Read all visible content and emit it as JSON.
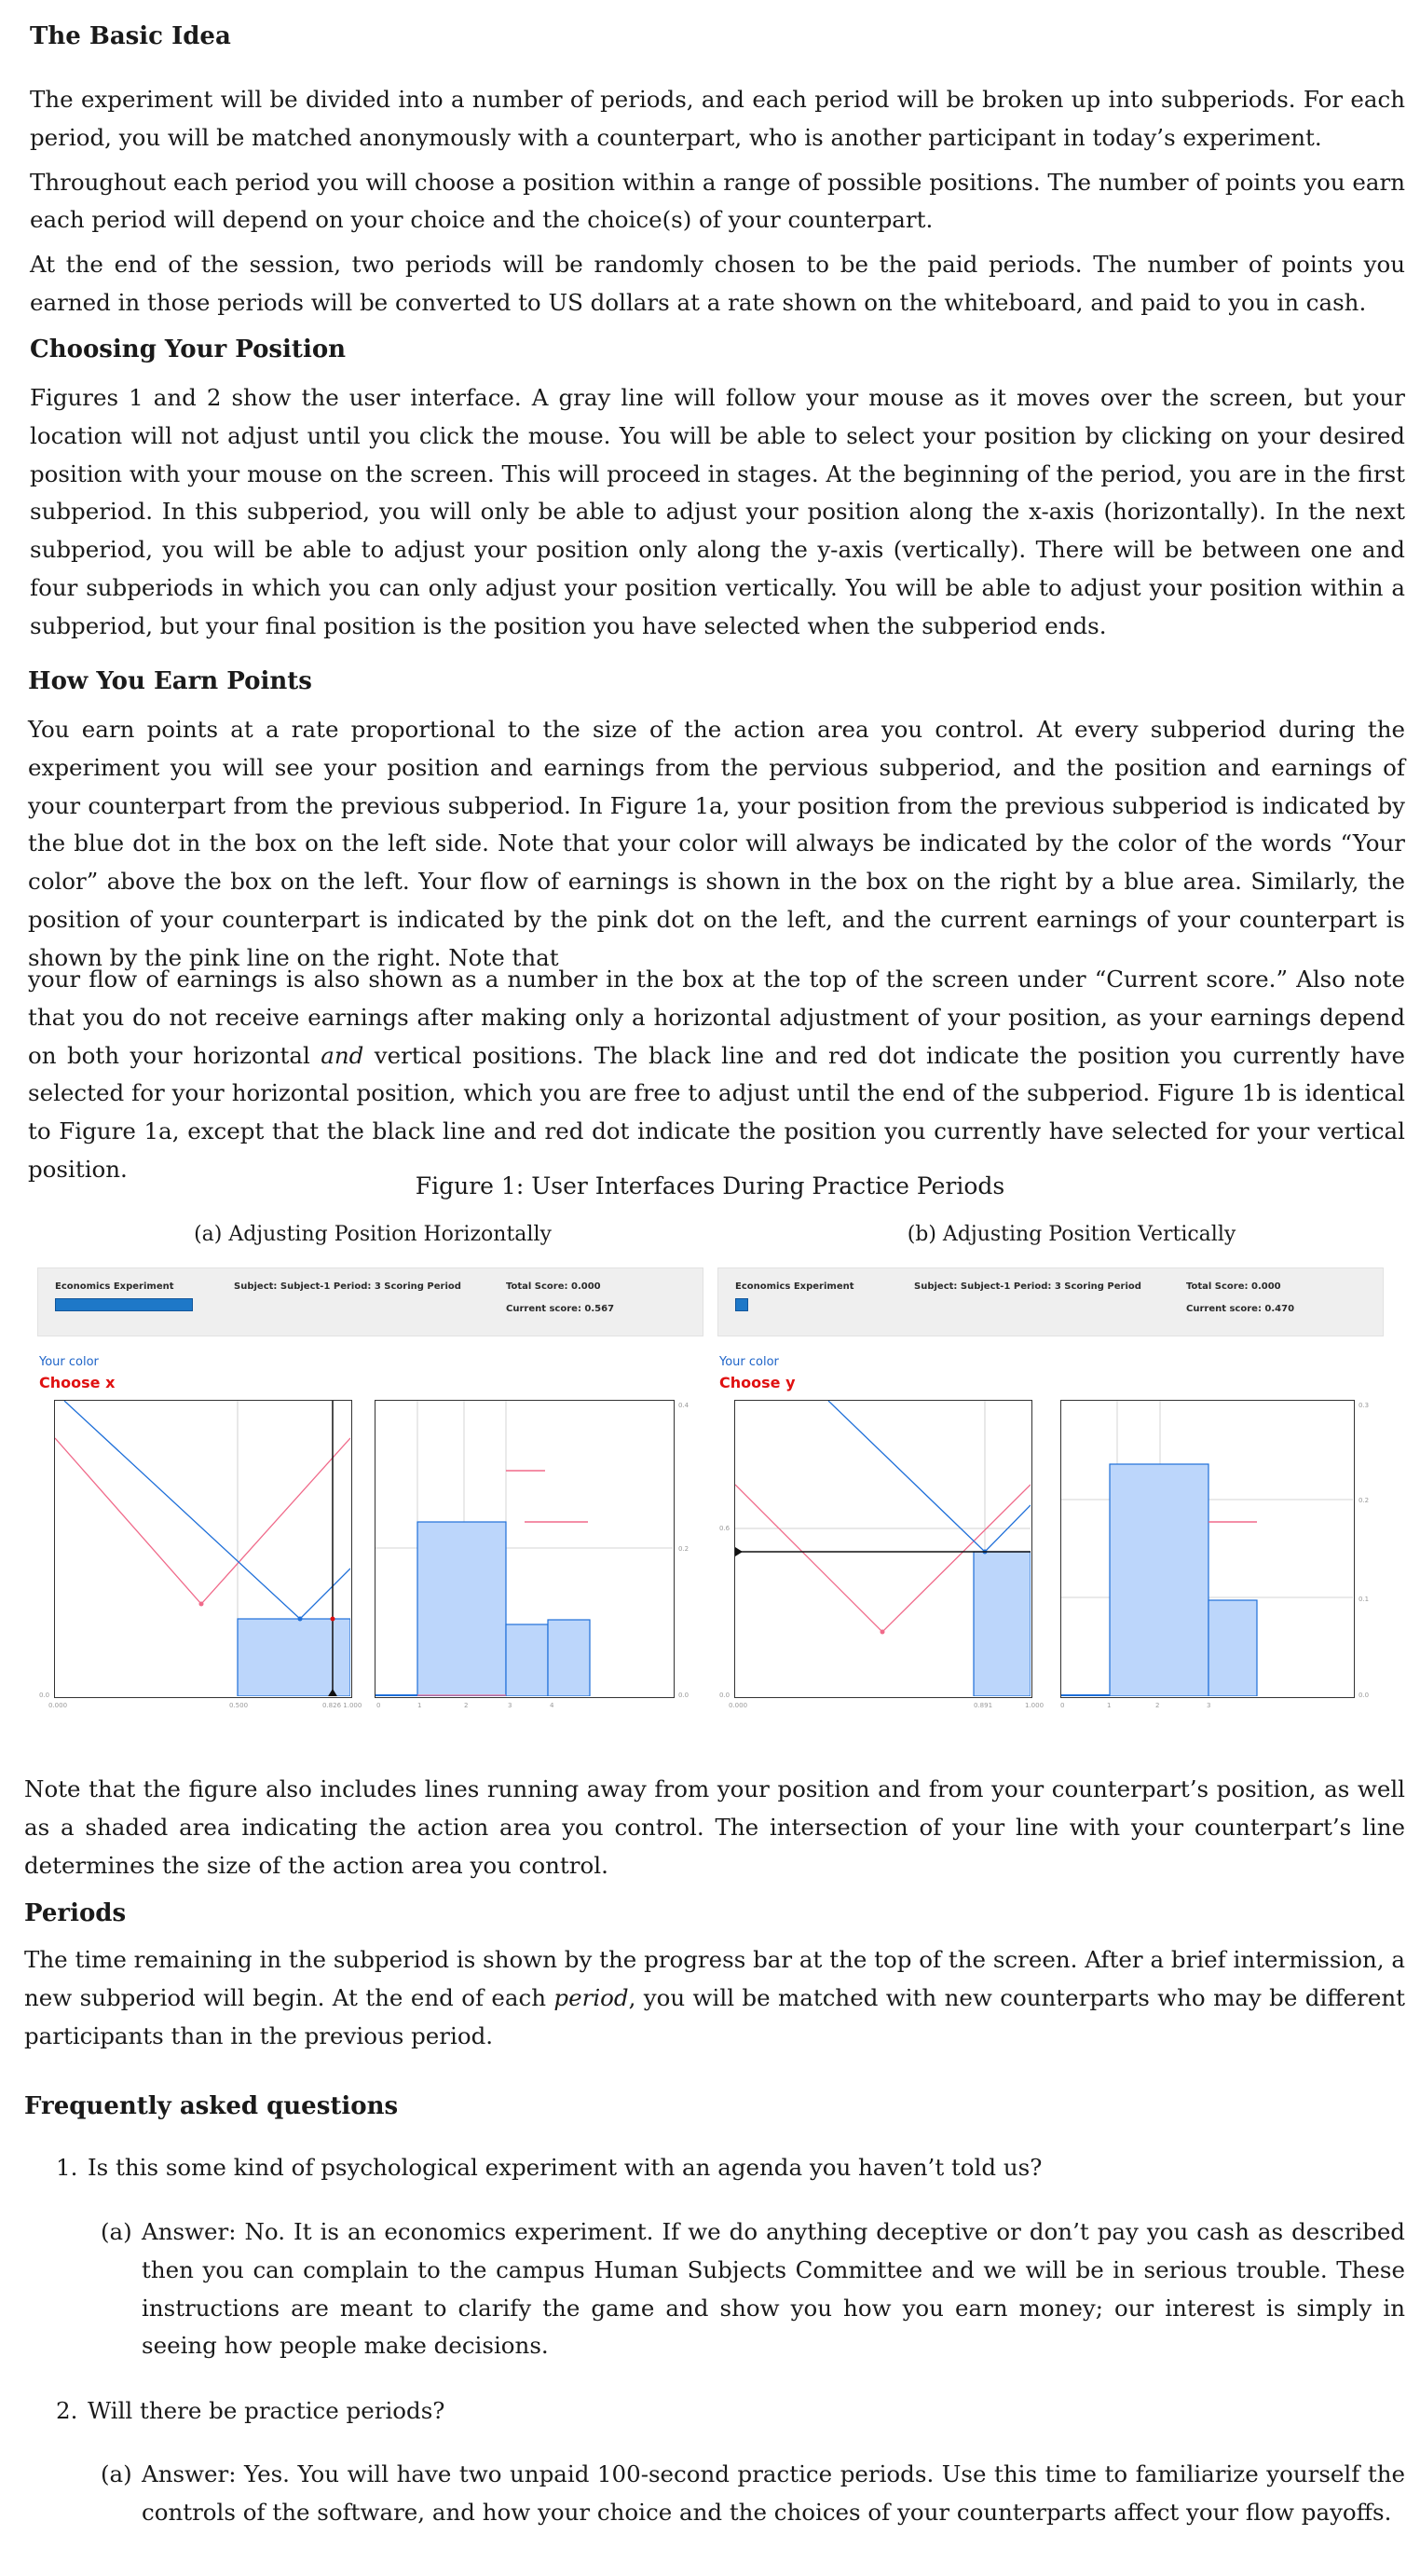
{
  "sections": {
    "basic_idea": {
      "title": "The Basic Idea",
      "p1": "The experiment will be divided into a number of periods, and each period will be broken up into subperiods. For each period, you will be matched anonymously with a counterpart, who is another participant in today’s experiment.",
      "p2": "Throughout each period you will choose a position within a range of possible positions. The number of points you earn each period will depend on your choice and the choice(s) of your counterpart.",
      "p3": "At the end of the session, two periods will be randomly chosen to be the paid periods. The number of points you earned in those periods will be converted to US dollars at a rate shown on the whiteboard, and paid to you in cash."
    },
    "choosing": {
      "title": "Choosing Your Position",
      "p1": "Figures 1 and 2 show the user interface. A gray line will follow your mouse as it moves over the screen, but your location will not adjust until you click the mouse. You will be able to select your position by clicking on your desired position with your mouse on the screen. This will proceed in stages. At the beginning of the period, you are in the first subperiod. In this subperiod, you will only be able to adjust your position along the x-axis (horizontally). In the next subperiod, you will be able to adjust your position only along the y-axis (vertically). There will be between one and four subperiods in which you can only adjust your position vertically. You will be able to adjust your position within a subperiod, but your final position is the position you have selected when the subperiod ends."
    },
    "earn": {
      "title": "How You Earn Points",
      "p1": "You earn points at a rate proportional to the size of the action area you control. At every subperiod during the experiment you will see your position and earnings from the pervious subperiod, and the position and earnings of your counterpart from the previous subperiod. In Figure 1a, your position from the previous subperiod is indicated by the blue dot in the box on the left side. Note that your color will always be indicated by the color of the words “Your color” above the box on the left. Your flow of earnings is shown in the box on the right by a blue area. Similarly, the position of your counterpart is indicated by the pink dot on the left, and the current earnings of your counterpart is shown by the pink line on the right. Note that",
      "p2_a": "your flow of earnings is also shown as a number in the box at the top of the screen under “Current score.” Also note that you do not receive earnings after making only a horizontal adjustment of your position, as your earnings depend on both your horizontal ",
      "p2_em": "and",
      "p2_b": " vertical positions. The black line and red dot indicate the position you currently have selected for your horizontal position, which you are free to adjust until the end of the subperiod. Figure 1b is identical to Figure 1a, except that the black line and red dot indicate the position you currently have selected for your vertical position."
    },
    "figure": {
      "caption": "Figure 1: User Interfaces During Practice Periods",
      "a": {
        "caption": "(a) Adjusting Position Horizontally",
        "app_title": "Economics Experiment",
        "info": "Subject: Subject-1   Period: 3   Scoring Period",
        "total": "Total Score: 0.000",
        "current": "Current score: 0.567",
        "progress": 0.83,
        "your_color": "Your color",
        "choose": "Choose x",
        "left_ticks": [
          "0.000",
          "0.500",
          "0.826  1.000"
        ],
        "left_y_ticks": [
          "0.0"
        ],
        "right_x_ticks": [
          "0",
          "1",
          "2",
          "3",
          "4"
        ],
        "right_y_ticks": [
          "0.4",
          "0.2",
          "0.0"
        ]
      },
      "b": {
        "caption": "(b) Adjusting Position Vertically",
        "app_title": "Economics Experiment",
        "info": "Subject: Subject-1   Period: 3   Scoring Period",
        "total": "Total Score: 0.000",
        "current": "Current score: 0.470",
        "progress": 0.1,
        "your_color": "Your color",
        "choose": "Choose y",
        "left_ticks": [
          "0.000",
          "0.891",
          "1.000"
        ],
        "left_y_ticks": [
          "0.6",
          "0.0"
        ],
        "right_x_ticks": [
          "0",
          "1",
          "2",
          "3"
        ],
        "right_y_ticks": [
          "0.3",
          "0.2",
          "0.1",
          "0.0"
        ]
      }
    },
    "note": "Note that the figure also includes lines running away from your position and from your counterpart’s position, as well as a shaded area indicating the action area you control. The intersection of your line with your counterpart’s line determines the size of the action area you control.",
    "periods": {
      "title": "Periods",
      "p_a": "The time remaining in the subperiod is shown by the progress bar at the top of the screen. After a brief intermission, a new subperiod will begin. At the end of each ",
      "p_em": "period",
      "p_b": ", you will be matched with new counterparts who may be different participants than in the previous period."
    },
    "faq": {
      "title": "Frequently asked questions",
      "q1_num": "1.",
      "q1": "Is this some kind of psychological experiment with an agenda you haven’t told us?",
      "a1_label": "(a)",
      "a1": "Answer: No. It is an economics experiment. If we do anything deceptive or don’t pay you cash as described then you can complain to the campus Human Subjects Committee and we will be in serious trouble. These instructions are meant to clarify the game and show you how you earn money; our interest is simply in seeing how people make decisions.",
      "q2_num": "2.",
      "q2": "Will there be practice periods?",
      "a2_label": "(a)",
      "a2": "Answer: Yes. You will have two unpaid 100-second practice periods. Use this time to familiarize yourself the controls of the software, and how your choice and the choices of your counterparts affect your flow payoffs."
    }
  },
  "colors": {
    "self": "#1e6fd9",
    "counterpart": "#f06a8a",
    "area": "#bcd6fb",
    "selection": "#e01010"
  }
}
